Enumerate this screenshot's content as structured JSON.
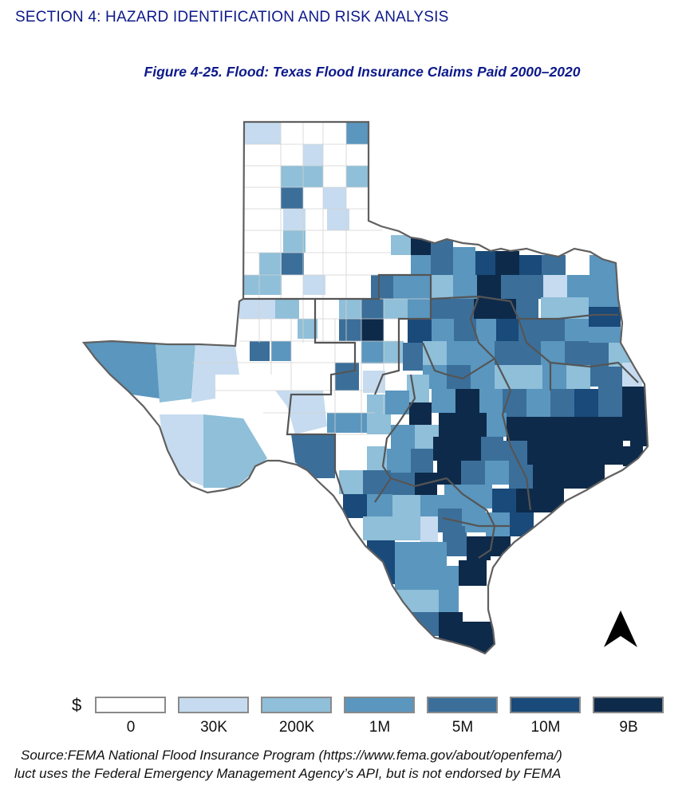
{
  "header": {
    "section": "SECTION 4: HAZARD IDENTIFICATION AND RISK ANALYSIS"
  },
  "figure": {
    "title": "Figure 4-25. Flood: Texas Flood Insurance Claims Paid 2000–2020"
  },
  "legend": {
    "currency": "$",
    "classes": [
      {
        "label": "0",
        "color": "#ffffff"
      },
      {
        "label": "30K",
        "color": "#c6dbef"
      },
      {
        "label": "200K",
        "color": "#8fbfd9"
      },
      {
        "label": "1M",
        "color": "#5a96be"
      },
      {
        "label": "5M",
        "color": "#3b6f9a"
      },
      {
        "label": "10M",
        "color": "#194a7a"
      },
      {
        "label": "9B",
        "color": "#0e2a4a"
      }
    ]
  },
  "map": {
    "north_arrow": "north-arrow-icon",
    "outline_color": "#606060",
    "county_line_color": "#d0d0d0"
  },
  "source": {
    "line1": "Source:FEMA National Flood Insurance Program (https://www.fema.gov/about/openfema/)",
    "line2": "luct uses the Federal Emergency Management Agency’s API, but is not endorsed by FEMA"
  }
}
